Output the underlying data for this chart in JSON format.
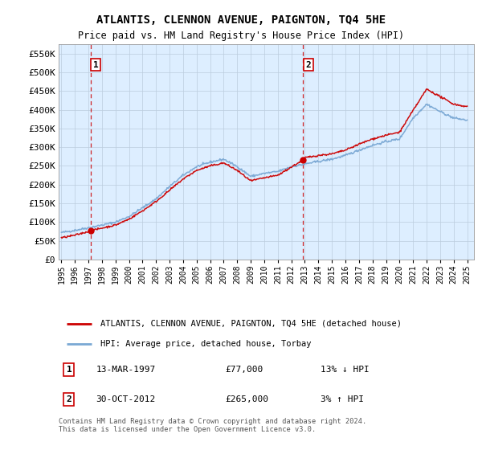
{
  "title": "ATLANTIS, CLENNON AVENUE, PAIGNTON, TQ4 5HE",
  "subtitle": "Price paid vs. HM Land Registry's House Price Index (HPI)",
  "ylabel_ticks": [
    "£0",
    "£50K",
    "£100K",
    "£150K",
    "£200K",
    "£250K",
    "£300K",
    "£350K",
    "£400K",
    "£450K",
    "£500K",
    "£550K"
  ],
  "ytick_values": [
    0,
    50000,
    100000,
    150000,
    200000,
    250000,
    300000,
    350000,
    400000,
    450000,
    500000,
    550000
  ],
  "ylim": [
    0,
    575000
  ],
  "xlim_start": 1994.8,
  "xlim_end": 2025.5,
  "sale1": {
    "year": 1997.2,
    "price": 77000,
    "label": "1",
    "date": "13-MAR-1997",
    "hpi_pct": "13% ↓ HPI"
  },
  "sale2": {
    "year": 2012.83,
    "price": 265000,
    "label": "2",
    "date": "30-OCT-2012",
    "hpi_pct": "3% ↑ HPI"
  },
  "legend_house": "ATLANTIS, CLENNON AVENUE, PAIGNTON, TQ4 5HE (detached house)",
  "legend_hpi": "HPI: Average price, detached house, Torbay",
  "footer": "Contains HM Land Registry data © Crown copyright and database right 2024.\nThis data is licensed under the Open Government Licence v3.0.",
  "house_color": "#cc0000",
  "hpi_color": "#7aa8d4",
  "bg_color": "#ddeeff",
  "plot_bg": "#ffffff",
  "grid_color": "#bbccdd",
  "vline_color": "#cc0000",
  "box_color": "#cc0000",
  "years_ticks": [
    1995,
    1996,
    1997,
    1998,
    1999,
    2000,
    2001,
    2002,
    2003,
    2004,
    2005,
    2006,
    2007,
    2008,
    2009,
    2010,
    2011,
    2012,
    2013,
    2014,
    2015,
    2016,
    2017,
    2018,
    2019,
    2020,
    2021,
    2022,
    2023,
    2024,
    2025
  ]
}
